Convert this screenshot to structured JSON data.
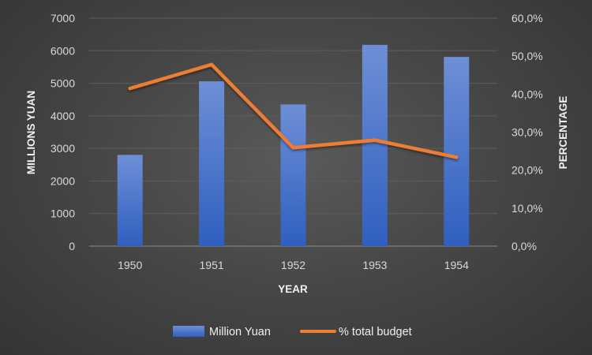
{
  "chart_data": {
    "type": "bar",
    "categories": [
      "1950",
      "1951",
      "1952",
      "1953",
      "1954"
    ],
    "series": [
      {
        "name": "Million Yuan",
        "type": "bar",
        "axis": "left",
        "color": "#4472c4",
        "values": [
          2800,
          5060,
          4350,
          6180,
          5810
        ]
      },
      {
        "name": "% total budget",
        "type": "line",
        "axis": "right",
        "color": "#ed7d31",
        "values": [
          41.5,
          47.8,
          25.9,
          27.9,
          23.4
        ]
      }
    ],
    "xlabel": "YEAR",
    "ylabel": "MILLIONS YUAN",
    "y2label": "PERCENTAGE",
    "ylim": [
      0,
      7000
    ],
    "y2lim": [
      0,
      60
    ],
    "yticks": [
      "0",
      "1000",
      "2000",
      "3000",
      "4000",
      "5000",
      "6000",
      "7000"
    ],
    "y2ticks": [
      "0,0%",
      "10,0%",
      "20,0%",
      "30,0%",
      "40,0%",
      "50,0%",
      "60,0%"
    ],
    "grid": true,
    "legend": "bottom"
  }
}
